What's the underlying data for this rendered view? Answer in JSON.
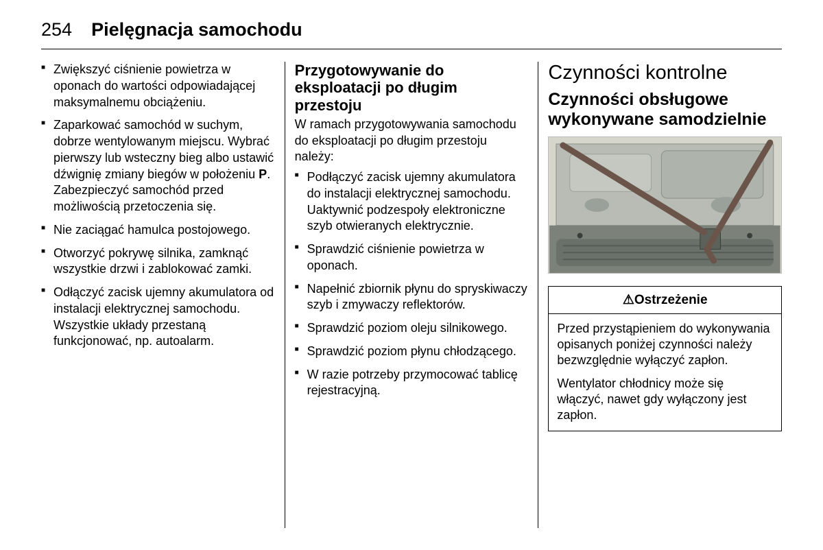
{
  "page_number": "254",
  "chapter": "Pielęgnacja samochodu",
  "col1": {
    "items": [
      "Zwiększyć ciśnienie powietrza w oponach do wartości odpowiadającej maksymalnemu obciążeniu.",
      "Zaparkować samochód w suchym, dobrze wentylowanym miejscu. Wybrać pierwszy lub wsteczny bieg albo ustawić dźwignię zmiany biegów w położeniu <b>P</b>. Zabezpieczyć samochód przed możliwością przetoczenia się.",
      "Nie zaciągać hamulca postojowego.",
      "Otworzyć pokrywę silnika, zamknąć wszystkie drzwi i zablokować zamki.",
      "Odłączyć zacisk ujemny akumulatora od instalacji elektrycznej samochodu. Wszystkie układy przestaną funkcjonować, np. autoalarm."
    ]
  },
  "col2": {
    "heading": "Przygotowywanie do eksploatacji po długim przestoju",
    "intro": "W ramach przygotowywania samochodu do eksploatacji po długim przestoju należy:",
    "items": [
      "Podłączyć zacisk ujemny akumulatora do instalacji elektrycznej samochodu. Uaktywnić podzespoły elektroniczne szyb otwieranych elektrycznie.",
      "Sprawdzić ciśnienie powietrza w oponach.",
      "Napełnić zbiornik płynu do spryskiwaczy szyb i zmywaczy reflektorów.",
      "Sprawdzić poziom oleju silnikowego.",
      "Sprawdzić poziom płynu chłodzącego.",
      "W razie potrzeby przymocować tablicę rejestracyjną."
    ]
  },
  "col3": {
    "title": "Czynności kontrolne",
    "subtitle": "Czynności obsługowe wykonywane samodzielnie",
    "warning_label": "Ostrzeżenie",
    "warning_p1": "Przed przystąpieniem do wykonywania opisanych poniżej czynności należy bezwzględnie wyłączyć zapłon.",
    "warning_p2": "Wentylator chłodnicy może się włączyć, nawet gdy wyłączony jest zapłon."
  },
  "figure": {
    "bg": "#d6d6cc",
    "panel": "#9aa09a",
    "grille": "#707670",
    "prop_color": "#6b554a",
    "prop_width": 9
  }
}
